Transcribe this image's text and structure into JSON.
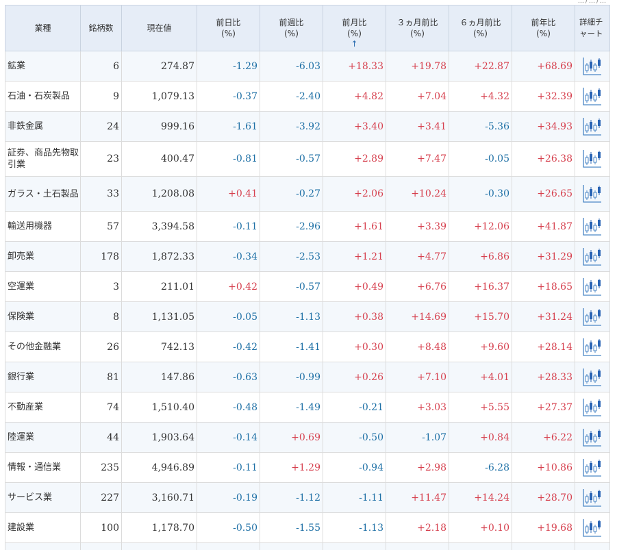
{
  "page": {
    "top_fragment": "…/…/…"
  },
  "headers": {
    "sector": "業種",
    "count": "銘柄数",
    "price": "現在値",
    "d1": [
      "前日比",
      "(%)"
    ],
    "w1": [
      "前週比",
      "(%)"
    ],
    "m1": [
      "前月比",
      "(%)"
    ],
    "m3": [
      "３ヵ月前比",
      "(%)"
    ],
    "m6": [
      "６ヵ月前比",
      "(%)"
    ],
    "y1": [
      "前年比",
      "(%)"
    ],
    "detail": [
      "詳細チ",
      "ャート"
    ],
    "sort_arrow": "↑"
  },
  "colors": {
    "positive": "#d6404e",
    "negative": "#1d6fa5",
    "header_bg": "#e6edf7",
    "alt_row_bg": "#f4f8fc",
    "sort_arrow": "#2b6cb0"
  },
  "icons": {
    "detail_chart": "candlestick-chart-icon",
    "sort": "arrow-up-icon"
  },
  "rows": [
    {
      "name": "鉱業",
      "count": "6",
      "price": "274.87",
      "d1": "-1.29",
      "w1": "-6.03",
      "m1": "+18.33",
      "m3": "+19.78",
      "m6": "+22.87",
      "y1": "+68.69"
    },
    {
      "name": "石油・石炭製品",
      "count": "9",
      "price": "1,079.13",
      "d1": "-0.37",
      "w1": "-2.40",
      "m1": "+4.82",
      "m3": "+7.04",
      "m6": "+4.32",
      "y1": "+32.39"
    },
    {
      "name": "非鉄金属",
      "count": "24",
      "price": "999.16",
      "d1": "-1.61",
      "w1": "-3.92",
      "m1": "+3.40",
      "m3": "+3.41",
      "m6": "-5.36",
      "y1": "+34.93"
    },
    {
      "name": "証券、商品先物取引業",
      "count": "23",
      "price": "400.47",
      "d1": "-0.81",
      "w1": "-0.57",
      "m1": "+2.89",
      "m3": "+7.47",
      "m6": "-0.05",
      "y1": "+26.38"
    },
    {
      "name": "ガラス・土石製品",
      "count": "33",
      "price": "1,208.08",
      "d1": "+0.41",
      "w1": "-0.27",
      "m1": "+2.06",
      "m3": "+10.24",
      "m6": "-0.30",
      "y1": "+26.65"
    },
    {
      "name": "輸送用機器",
      "count": "57",
      "price": "3,394.58",
      "d1": "-0.11",
      "w1": "-2.96",
      "m1": "+1.61",
      "m3": "+3.39",
      "m6": "+12.06",
      "y1": "+41.87"
    },
    {
      "name": "卸売業",
      "count": "178",
      "price": "1,872.33",
      "d1": "-0.34",
      "w1": "-2.53",
      "m1": "+1.21",
      "m3": "+4.77",
      "m6": "+6.86",
      "y1": "+31.29"
    },
    {
      "name": "空運業",
      "count": "3",
      "price": "211.01",
      "d1": "+0.42",
      "w1": "-0.57",
      "m1": "+0.49",
      "m3": "+6.76",
      "m6": "+16.37",
      "y1": "+18.65"
    },
    {
      "name": "保険業",
      "count": "8",
      "price": "1,131.05",
      "d1": "-0.05",
      "w1": "-1.13",
      "m1": "+0.38",
      "m3": "+14.69",
      "m6": "+15.70",
      "y1": "+31.24"
    },
    {
      "name": "その他金融業",
      "count": "26",
      "price": "742.13",
      "d1": "-0.42",
      "w1": "-1.41",
      "m1": "+0.30",
      "m3": "+8.48",
      "m6": "+9.60",
      "y1": "+28.14"
    },
    {
      "name": "銀行業",
      "count": "81",
      "price": "147.86",
      "d1": "-0.63",
      "w1": "-0.99",
      "m1": "+0.26",
      "m3": "+7.10",
      "m6": "+4.01",
      "y1": "+28.33"
    },
    {
      "name": "不動産業",
      "count": "74",
      "price": "1,510.40",
      "d1": "-0.48",
      "w1": "-1.49",
      "m1": "-0.21",
      "m3": "+3.03",
      "m6": "+5.55",
      "y1": "+27.37"
    },
    {
      "name": "陸運業",
      "count": "44",
      "price": "1,903.64",
      "d1": "-0.14",
      "w1": "+0.69",
      "m1": "-0.50",
      "m3": "-1.07",
      "m6": "+0.84",
      "y1": "+6.22"
    },
    {
      "name": "情報・通信業",
      "count": "235",
      "price": "4,946.89",
      "d1": "-0.11",
      "w1": "+1.29",
      "m1": "-0.94",
      "m3": "+2.98",
      "m6": "-6.28",
      "y1": "+10.86"
    },
    {
      "name": "サービス業",
      "count": "227",
      "price": "3,160.71",
      "d1": "-0.19",
      "w1": "-1.12",
      "m1": "-1.11",
      "m3": "+11.47",
      "m6": "+14.24",
      "y1": "+28.70"
    },
    {
      "name": "建設業",
      "count": "100",
      "price": "1,178.70",
      "d1": "-0.50",
      "w1": "-1.55",
      "m1": "-1.13",
      "m3": "+2.18",
      "m6": "+0.10",
      "y1": "+19.68"
    }
  ]
}
